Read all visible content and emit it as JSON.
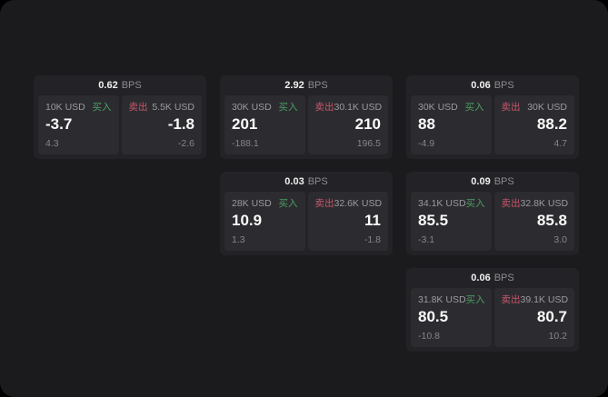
{
  "labels": {
    "bps_unit": "BPS",
    "buy": "买入",
    "sell": "卖出"
  },
  "colors": {
    "background": "#000000",
    "surface": "#1b1b1d",
    "card": "#232327",
    "pane": "#2c2c30",
    "buy_green": "#4d9e63",
    "sell_red": "#c9556b",
    "text_primary": "#fafafa",
    "text_muted": "#9a9aa0"
  },
  "cards": [
    {
      "bps": "0.62",
      "buy": {
        "notional": "10K USD",
        "price": "-3.7",
        "delta": "4.3"
      },
      "sell": {
        "notional": "5.5K USD",
        "price": "-1.8",
        "delta": "-2.6"
      }
    },
    {
      "bps": "2.92",
      "buy": {
        "notional": "30K USD",
        "price": "201",
        "delta": "-188.1"
      },
      "sell": {
        "notional": "30.1K USD",
        "price": "210",
        "delta": "196.5"
      }
    },
    {
      "bps": "0.06",
      "buy": {
        "notional": "30K USD",
        "price": "88",
        "delta": "-4.9"
      },
      "sell": {
        "notional": "30K USD",
        "price": "88.2",
        "delta": "4.7"
      }
    },
    {
      "bps": "0.03",
      "buy": {
        "notional": "28K USD",
        "price": "10.9",
        "delta": "1.3"
      },
      "sell": {
        "notional": "32.6K USD",
        "price": "11",
        "delta": "-1.8"
      }
    },
    {
      "bps": "0.09",
      "buy": {
        "notional": "34.1K USD",
        "price": "85.5",
        "delta": "-3.1"
      },
      "sell": {
        "notional": "32.8K USD",
        "price": "85.8",
        "delta": "3.0"
      }
    },
    {
      "bps": "0.06",
      "buy": {
        "notional": "31.8K USD",
        "price": "80.5",
        "delta": "-10.8"
      },
      "sell": {
        "notional": "39.1K USD",
        "price": "80.7",
        "delta": "10.2"
      }
    }
  ]
}
